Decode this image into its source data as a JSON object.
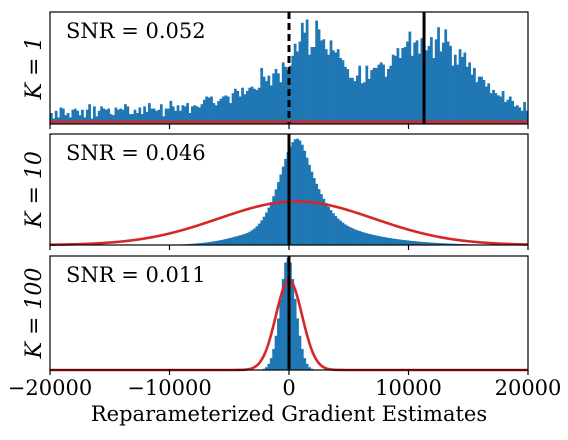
{
  "chart_data": [
    {
      "type": "bar",
      "title": "",
      "panel_label": "K = 1",
      "annotation": "SNR = 0.052",
      "xlim": [
        -20000,
        20000
      ],
      "xticks": [
        -20000,
        -10000,
        0,
        10000,
        20000
      ],
      "xtick_labels": [
        "−20000",
        "−10000",
        "0",
        "10000",
        "20000"
      ],
      "show_xtick_labels": false,
      "ylim": [
        0,
        1.0
      ],
      "histogram": {
        "bin_start": -20000,
        "bin_width": 200,
        "values": [
          0.1,
          0.05,
          0.12,
          0.06,
          0.15,
          0.14,
          0.08,
          0.1,
          0.06,
          0.13,
          0.14,
          0.12,
          0.08,
          0.13,
          0.06,
          0.13,
          0.18,
          0.05,
          0.16,
          0.07,
          0.12,
          0.16,
          0.14,
          0.13,
          0.14,
          0.09,
          0.08,
          0.15,
          0.13,
          0.14,
          0.13,
          0.18,
          0.16,
          0.09,
          0.09,
          0.13,
          0.1,
          0.15,
          0.09,
          0.16,
          0.11,
          0.19,
          0.14,
          0.14,
          0.12,
          0.13,
          0.18,
          0.07,
          0.14,
          0.14,
          0.21,
          0.16,
          0.12,
          0.17,
          0.12,
          0.17,
          0.16,
          0.19,
          0.1,
          0.16,
          0.17,
          0.16,
          0.15,
          0.18,
          0.22,
          0.25,
          0.24,
          0.25,
          0.19,
          0.17,
          0.21,
          0.23,
          0.25,
          0.26,
          0.25,
          0.19,
          0.28,
          0.32,
          0.3,
          0.25,
          0.33,
          0.27,
          0.3,
          0.33,
          0.34,
          0.32,
          0.31,
          0.33,
          0.51,
          0.43,
          0.39,
          0.44,
          0.35,
          0.46,
          0.5,
          0.46,
          0.38,
          0.56,
          0.52,
          0.49,
          0.53,
          0.62,
          0.73,
          0.66,
          0.75,
          0.92,
          0.83,
          0.95,
          0.63,
          0.7,
          0.7,
          0.94,
          0.86,
          0.76,
          0.77,
          0.68,
          0.63,
          0.76,
          0.67,
          0.65,
          0.68,
          0.6,
          0.58,
          0.52,
          0.5,
          0.42,
          0.42,
          0.39,
          0.44,
          0.53,
          0.37,
          0.38,
          0.53,
          0.41,
          0.49,
          0.51,
          0.51,
          0.54,
          0.56,
          0.54,
          0.43,
          0.5,
          0.53,
          0.63,
          0.62,
          0.69,
          0.6,
          0.69,
          0.7,
          0.75,
          0.84,
          0.62,
          0.74,
          0.76,
          0.64,
          0.78,
          0.72,
          0.67,
          0.71,
          0.79,
          0.6,
          0.77,
          0.88,
          0.66,
          0.74,
          0.86,
          0.75,
          0.71,
          0.53,
          0.63,
          0.54,
          0.68,
          0.61,
          0.65,
          0.52,
          0.56,
          0.45,
          0.51,
          0.38,
          0.43,
          0.43,
          0.4,
          0.34,
          0.37,
          0.28,
          0.31,
          0.28,
          0.26,
          0.25,
          0.3,
          0.2,
          0.22,
          0.25,
          0.21,
          0.16,
          0.17,
          0.15,
          0.12,
          0.2,
          0.12
        ]
      },
      "fitted_curve": {
        "kind": "gaussian",
        "mean": 600,
        "std": 200000,
        "peak": 0.02
      },
      "vlines": [
        {
          "x": 0,
          "style": "dashed"
        },
        {
          "x": 11300,
          "style": "solid"
        }
      ]
    },
    {
      "type": "bar",
      "title": "",
      "panel_label": "K = 10",
      "annotation": "SNR = 0.046",
      "xlim": [
        -20000,
        20000
      ],
      "xticks": [
        -20000,
        -10000,
        0,
        10000,
        20000
      ],
      "xtick_labels": [
        "−20000",
        "−10000",
        "0",
        "10000",
        "20000"
      ],
      "show_xtick_labels": false,
      "ylim": [
        0,
        1.0
      ],
      "histogram": {
        "bin_start": -20000,
        "bin_width": 200,
        "values": [
          0,
          0,
          0,
          0,
          0,
          0,
          0,
          0,
          0,
          0,
          0,
          0,
          0,
          0,
          0,
          0,
          0,
          0,
          0,
          0,
          0,
          0,
          0,
          0,
          0,
          0,
          0,
          0,
          0,
          0,
          0,
          0,
          0,
          0,
          0,
          0,
          0,
          0,
          0,
          0,
          0,
          0,
          0,
          0,
          0,
          0,
          0,
          0,
          0,
          0,
          0,
          0,
          0.003,
          0.004,
          0.005,
          0.006,
          0.007,
          0.008,
          0.01,
          0.011,
          0.013,
          0.015,
          0.017,
          0.019,
          0.021,
          0.024,
          0.027,
          0.03,
          0.033,
          0.037,
          0.041,
          0.045,
          0.05,
          0.055,
          0.06,
          0.065,
          0.071,
          0.077,
          0.083,
          0.089,
          0.095,
          0.103,
          0.111,
          0.122,
          0.136,
          0.152,
          0.172,
          0.196,
          0.225,
          0.259,
          0.298,
          0.343,
          0.393,
          0.448,
          0.51,
          0.577,
          0.647,
          0.719,
          0.789,
          0.852,
          0.904,
          0.944,
          0.97,
          0.975,
          0.958,
          0.92,
          0.865,
          0.801,
          0.735,
          0.672,
          0.614,
          0.561,
          0.512,
          0.467,
          0.424,
          0.386,
          0.351,
          0.319,
          0.291,
          0.265,
          0.243,
          0.223,
          0.205,
          0.189,
          0.176,
          0.164,
          0.154,
          0.144,
          0.136,
          0.128,
          0.121,
          0.114,
          0.108,
          0.102,
          0.097,
          0.092,
          0.087,
          0.082,
          0.078,
          0.074,
          0.07,
          0.066,
          0.063,
          0.059,
          0.056,
          0.053,
          0.05,
          0.047,
          0.045,
          0.042,
          0.04,
          0.037,
          0.035,
          0.033,
          0.031,
          0.029,
          0.027,
          0.026,
          0.024,
          0.022,
          0.021,
          0.02,
          0.018,
          0.017,
          0.016,
          0.015,
          0.014,
          0.013,
          0.012,
          0.011,
          0.01,
          0.009,
          0.008,
          0.008,
          0.007,
          0.006,
          0.006,
          0.005,
          0.005,
          0.004,
          0.004,
          0.003,
          0,
          0,
          0,
          0,
          0,
          0,
          0,
          0,
          0,
          0,
          0,
          0,
          0,
          0,
          0,
          0,
          0,
          0,
          0,
          0,
          0,
          0,
          0,
          0,
          0,
          0,
          0,
          0,
          0,
          0,
          0,
          0,
          0,
          0,
          0,
          0,
          0
        ]
      },
      "fitted_curve": {
        "kind": "gaussian",
        "mean": 600,
        "std": 6500,
        "peak": 0.4
      },
      "vlines": [
        {
          "x": 0,
          "style": "dashed"
        },
        {
          "x": 0,
          "style": "solid"
        }
      ]
    },
    {
      "type": "bar",
      "title": "",
      "panel_label": "K = 100",
      "annotation": "SNR = 0.011",
      "xlim": [
        -20000,
        20000
      ],
      "xticks": [
        -20000,
        -10000,
        0,
        10000,
        20000
      ],
      "xtick_labels": [
        "−20000",
        "−10000",
        "0",
        "10000",
        "20000"
      ],
      "show_xtick_labels": true,
      "xlabel": "Reparameterized Gradient Estimates",
      "ylim": [
        0,
        1.0
      ],
      "histogram": {
        "bin_start": -20000,
        "bin_width": 200,
        "values": [
          0,
          0,
          0,
          0,
          0,
          0,
          0,
          0,
          0,
          0,
          0,
          0,
          0,
          0,
          0,
          0,
          0,
          0,
          0,
          0,
          0,
          0,
          0,
          0,
          0,
          0,
          0,
          0,
          0,
          0,
          0,
          0,
          0,
          0,
          0,
          0,
          0,
          0,
          0,
          0,
          0,
          0,
          0,
          0,
          0,
          0,
          0,
          0,
          0,
          0,
          0,
          0,
          0,
          0,
          0,
          0,
          0,
          0,
          0,
          0,
          0,
          0,
          0,
          0,
          0,
          0,
          0,
          0,
          0,
          0,
          0,
          0,
          0,
          0,
          0,
          0,
          0,
          0,
          0,
          0,
          0,
          0,
          0,
          0,
          0,
          0,
          0,
          0,
          0,
          0.011,
          0.025,
          0.055,
          0.106,
          0.188,
          0.306,
          0.46,
          0.635,
          0.812,
          0.96,
          1.0,
          0.96,
          0.812,
          0.635,
          0.46,
          0.306,
          0.188,
          0.106,
          0.055,
          0.025,
          0.011,
          0,
          0,
          0,
          0,
          0,
          0,
          0,
          0,
          0,
          0,
          0,
          0,
          0,
          0,
          0,
          0,
          0,
          0,
          0,
          0,
          0,
          0,
          0,
          0,
          0,
          0,
          0,
          0,
          0,
          0,
          0,
          0,
          0,
          0,
          0,
          0,
          0,
          0,
          0,
          0,
          0,
          0,
          0,
          0,
          0,
          0,
          0,
          0,
          0,
          0,
          0,
          0,
          0,
          0,
          0,
          0,
          0,
          0,
          0,
          0,
          0,
          0,
          0,
          0,
          0,
          0,
          0,
          0,
          0,
          0,
          0,
          0,
          0,
          0,
          0,
          0,
          0,
          0,
          0,
          0,
          0,
          0,
          0,
          0,
          0,
          0,
          0,
          0,
          0,
          0,
          0,
          0,
          0,
          0
        ]
      },
      "fitted_curve": {
        "kind": "gaussian",
        "mean": 0,
        "std": 1100,
        "peak": 0.8
      },
      "vlines": [
        {
          "x": 0,
          "style": "dashed"
        },
        {
          "x": 0,
          "style": "solid"
        }
      ]
    }
  ],
  "colors": {
    "bars": "#1f77b4",
    "curve": "#d62728",
    "lines": "#000000",
    "frame": "#000000"
  }
}
